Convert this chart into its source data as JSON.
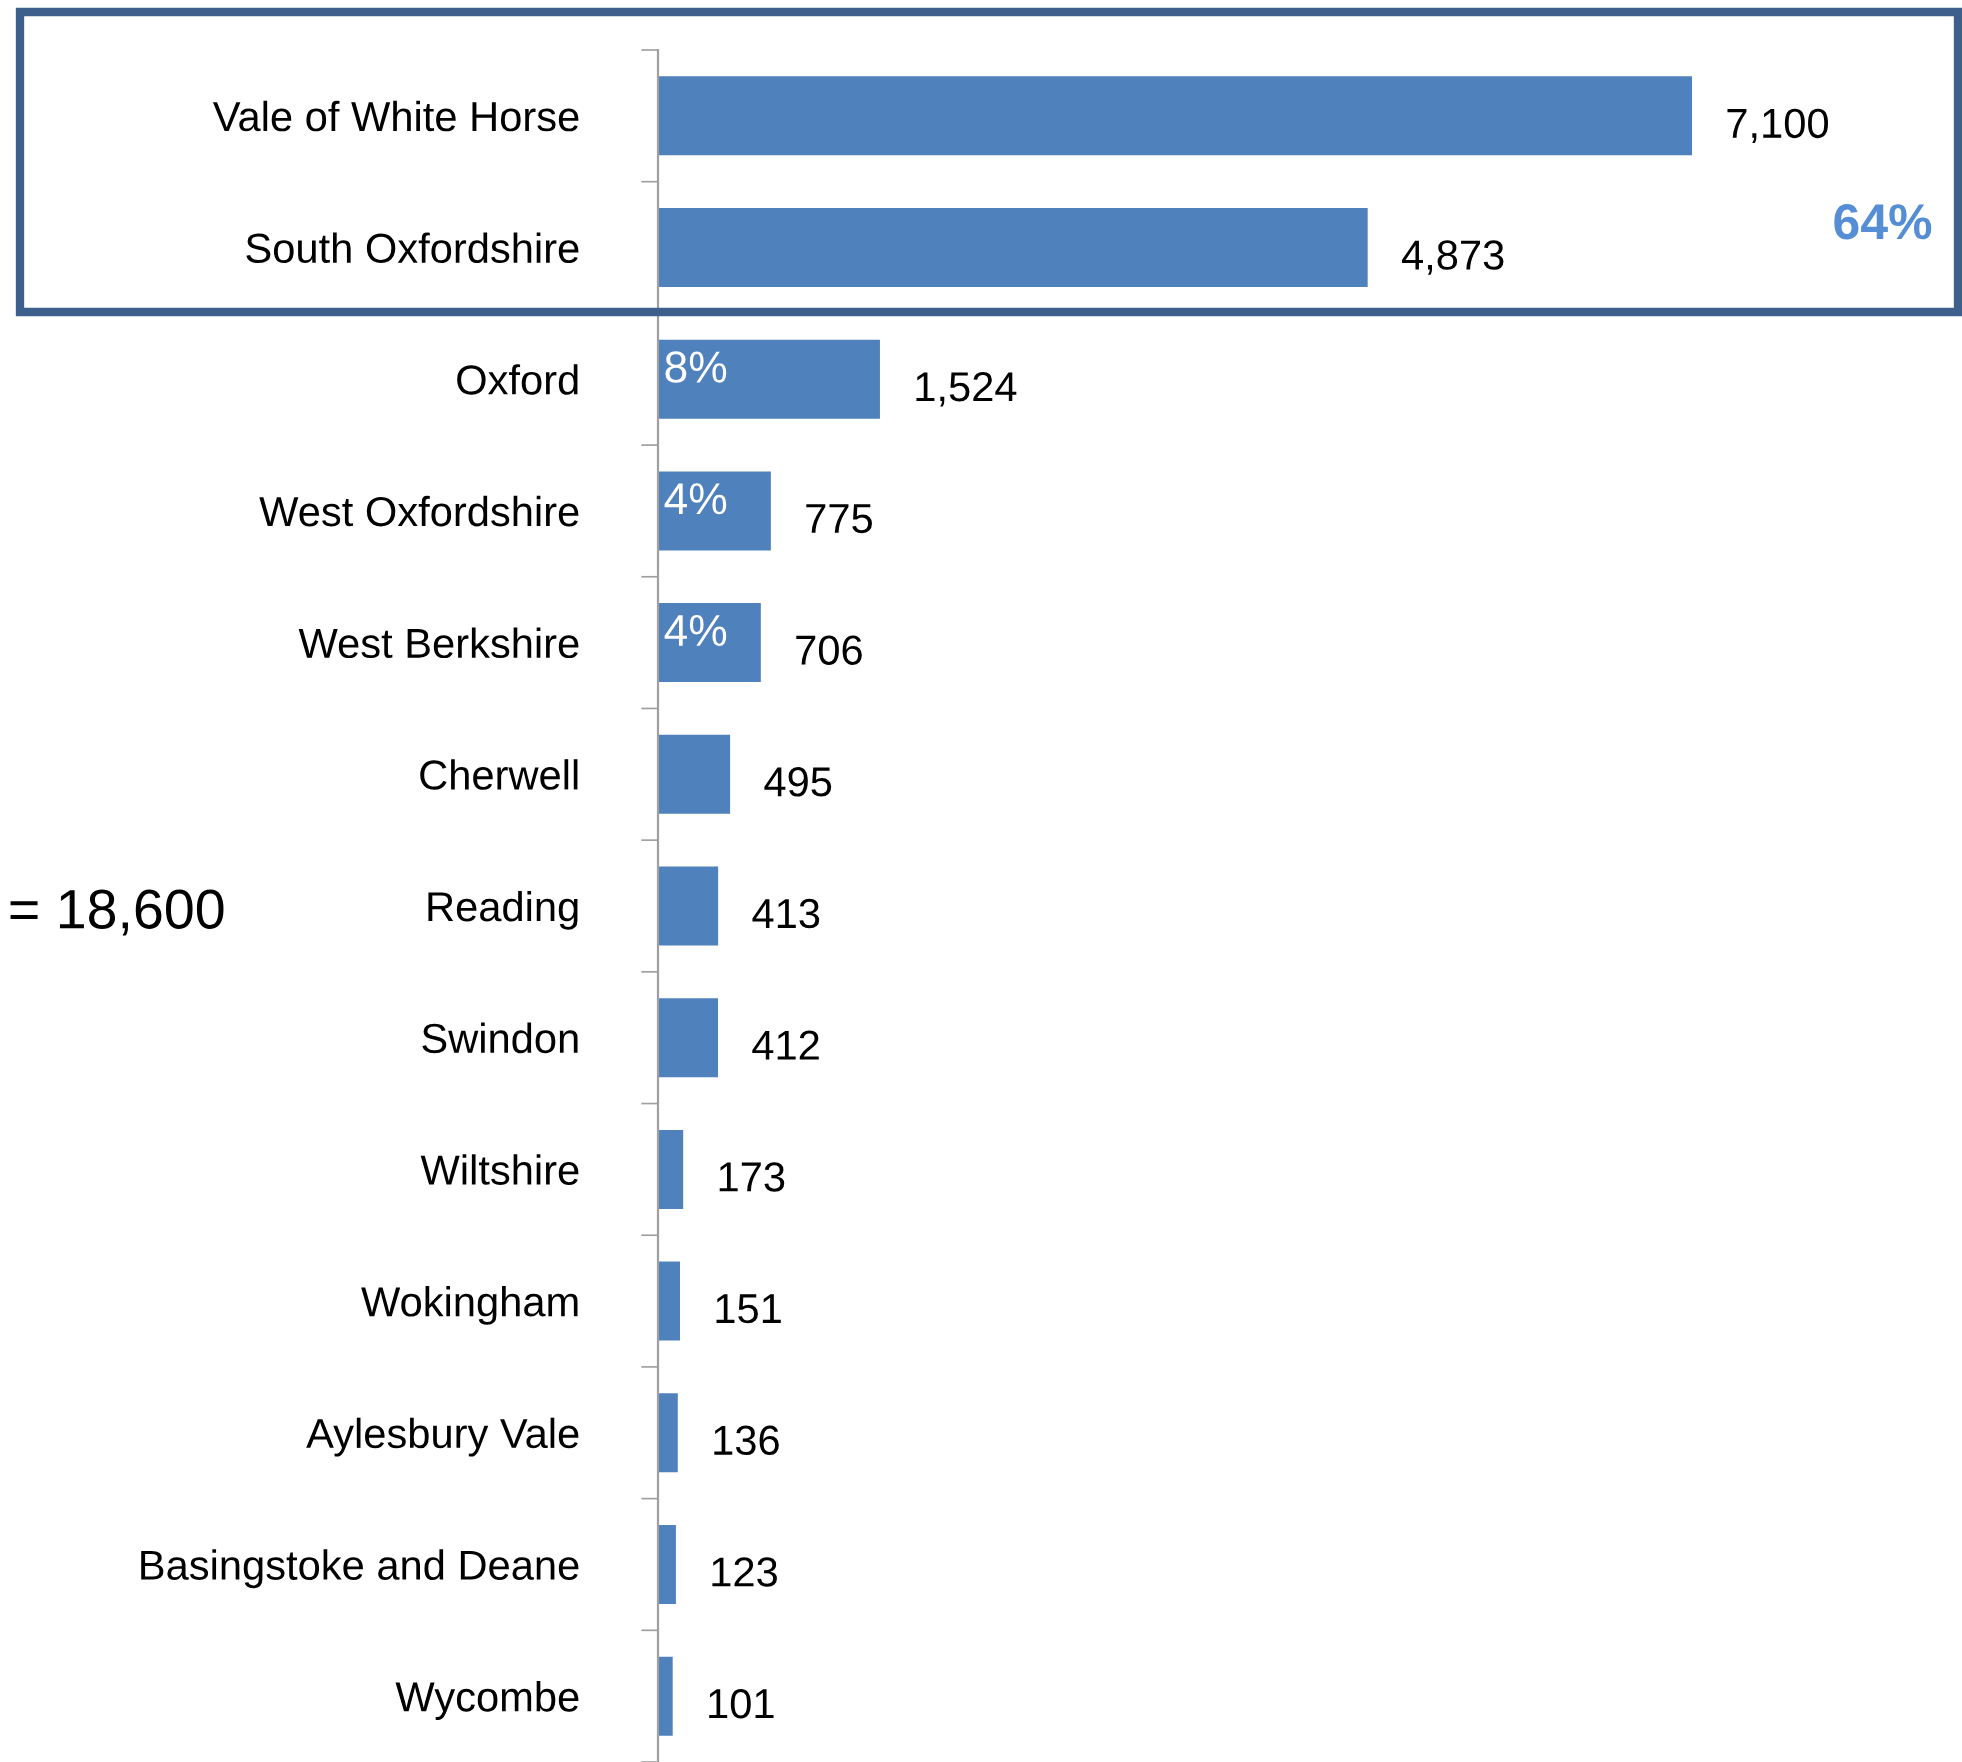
{
  "chart_data": {
    "type": "bar",
    "orientation": "horizontal",
    "categories": [
      "Vale of White Horse",
      "South Oxfordshire",
      "Oxford",
      "West Oxfordshire",
      "West Berkshire",
      "Cherwell",
      "Reading",
      "Swindon",
      "Wiltshire",
      "Wokingham",
      "Aylesbury Vale",
      "Basingstoke and Deane",
      "Wycombe"
    ],
    "values": [
      7100,
      4873,
      1524,
      775,
      706,
      495,
      413,
      412,
      173,
      151,
      136,
      123,
      101
    ],
    "color": "#4f81bd",
    "value_labels": [
      "7,100",
      "4,873",
      "1,524",
      "775",
      "706",
      "495",
      "413",
      "412",
      "173",
      "151",
      "136",
      "123",
      "101"
    ],
    "annotations": [
      "64%",
      "= 18,600",
      "8%",
      "4%",
      "4%"
    ],
    "grid": false
  }
}
